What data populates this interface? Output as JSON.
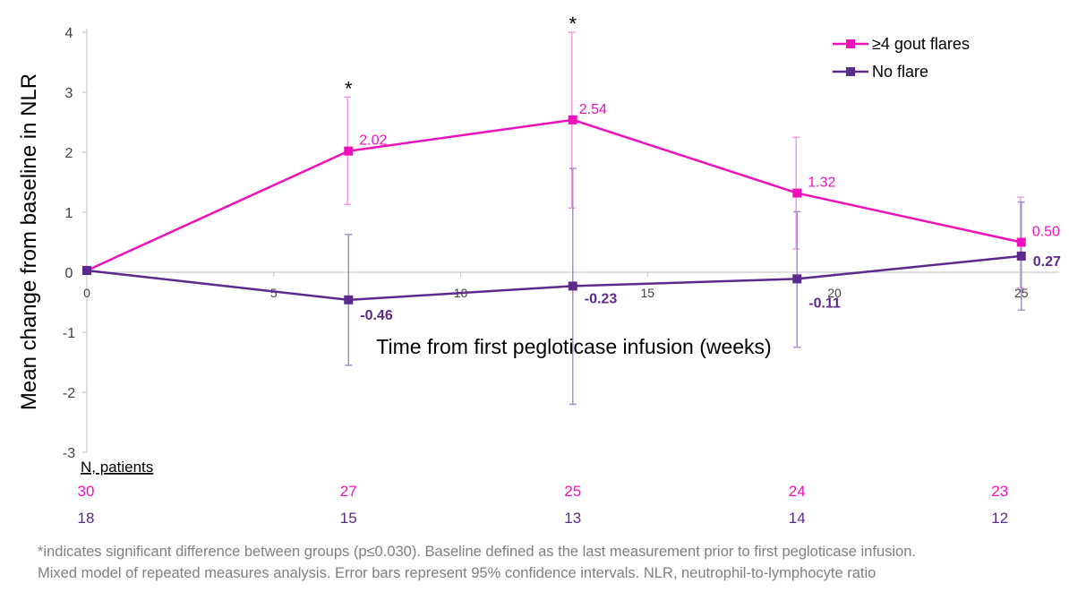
{
  "chart_data": {
    "type": "line",
    "xlabel": "Time from first pegloticase infusion (weeks)",
    "ylabel": "Mean change from baseline in NLR",
    "xlim": [
      0,
      26
    ],
    "ylim": [
      -3,
      4
    ],
    "x_ticks": [
      0,
      5,
      10,
      15,
      20,
      25
    ],
    "y_ticks": [
      -3,
      -2,
      -1,
      0,
      1,
      2,
      3,
      4
    ],
    "legend_position": "top-right",
    "grid": false,
    "series": [
      {
        "name": "≥4 gout flares",
        "color": "#ee11bb",
        "x": [
          0,
          7,
          13,
          19,
          25
        ],
        "y": [
          0.03,
          2.02,
          2.54,
          1.32,
          0.5
        ],
        "labels": [
          "",
          "2.02",
          "2.54",
          "1.32",
          "0.50"
        ],
        "error_low": [
          null,
          1.13,
          1.07,
          0.39,
          -0.26
        ],
        "error_high": [
          null,
          2.92,
          4.0,
          2.25,
          1.25
        ],
        "n": [
          "30",
          "27",
          "25",
          "24",
          "23"
        ]
      },
      {
        "name": "No flare",
        "color": "#5c2a8c",
        "x": [
          0,
          7,
          13,
          19,
          25
        ],
        "y": [
          0.03,
          -0.46,
          -0.23,
          -0.11,
          0.27
        ],
        "labels": [
          "",
          "-0.46",
          "-0.23",
          "-0.11",
          "0.27"
        ],
        "error_low": [
          null,
          -1.55,
          -2.2,
          -1.25,
          -0.63
        ],
        "error_high": [
          null,
          0.63,
          1.73,
          1.01,
          1.17
        ],
        "n": [
          "18",
          "15",
          "13",
          "14",
          "12"
        ]
      }
    ],
    "significance_markers": [
      {
        "x": 7,
        "y": 2.92,
        "label": "*"
      },
      {
        "x": 13,
        "y": 4.0,
        "label": "*"
      }
    ],
    "n_table_header": "N, patients"
  },
  "footnote": {
    "line1": "*indicates significant difference between groups (p≤0.030). Baseline defined as the last measurement prior to first pegloticase infusion.",
    "line2": "Mixed model of repeated measures analysis. Error bars represent 95% confidence intervals. NLR, neutrophil-to-lymphocyte ratio"
  }
}
